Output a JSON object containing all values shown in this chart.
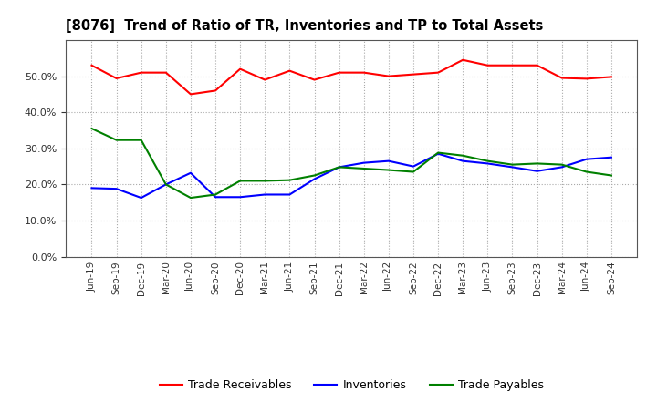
{
  "title": "[8076]  Trend of Ratio of TR, Inventories and TP to Total Assets",
  "x_labels": [
    "Jun-19",
    "Sep-19",
    "Dec-19",
    "Mar-20",
    "Jun-20",
    "Sep-20",
    "Dec-20",
    "Mar-21",
    "Jun-21",
    "Sep-21",
    "Dec-21",
    "Mar-22",
    "Jun-22",
    "Sep-22",
    "Dec-22",
    "Mar-23",
    "Jun-23",
    "Sep-23",
    "Dec-23",
    "Mar-24",
    "Jun-24",
    "Sep-24"
  ],
  "trade_receivables": [
    0.53,
    0.494,
    0.51,
    0.51,
    0.45,
    0.46,
    0.52,
    0.49,
    0.515,
    0.49,
    0.51,
    0.51,
    0.5,
    0.505,
    0.51,
    0.545,
    0.53,
    0.53,
    0.53,
    0.495,
    0.493,
    0.498
  ],
  "inventories": [
    0.19,
    0.188,
    0.163,
    0.2,
    0.232,
    0.165,
    0.165,
    0.172,
    0.172,
    0.215,
    0.248,
    0.26,
    0.265,
    0.25,
    0.285,
    0.265,
    0.258,
    0.248,
    0.237,
    0.248,
    0.27,
    0.275
  ],
  "trade_payables": [
    0.355,
    0.323,
    0.323,
    0.2,
    0.163,
    0.172,
    0.21,
    0.21,
    0.212,
    0.225,
    0.248,
    0.244,
    0.24,
    0.235,
    0.288,
    0.28,
    0.265,
    0.255,
    0.258,
    0.255,
    0.235,
    0.225
  ],
  "tr_color": "#FF0000",
  "inv_color": "#0000FF",
  "tp_color": "#008000",
  "background_color": "#FFFFFF",
  "plot_bg_color": "#FFFFFF",
  "grid_color": "#AAAAAA",
  "ylim": [
    0.0,
    0.6
  ],
  "yticks": [
    0.0,
    0.1,
    0.2,
    0.3,
    0.4,
    0.5
  ],
  "legend_labels": [
    "Trade Receivables",
    "Inventories",
    "Trade Payables"
  ]
}
